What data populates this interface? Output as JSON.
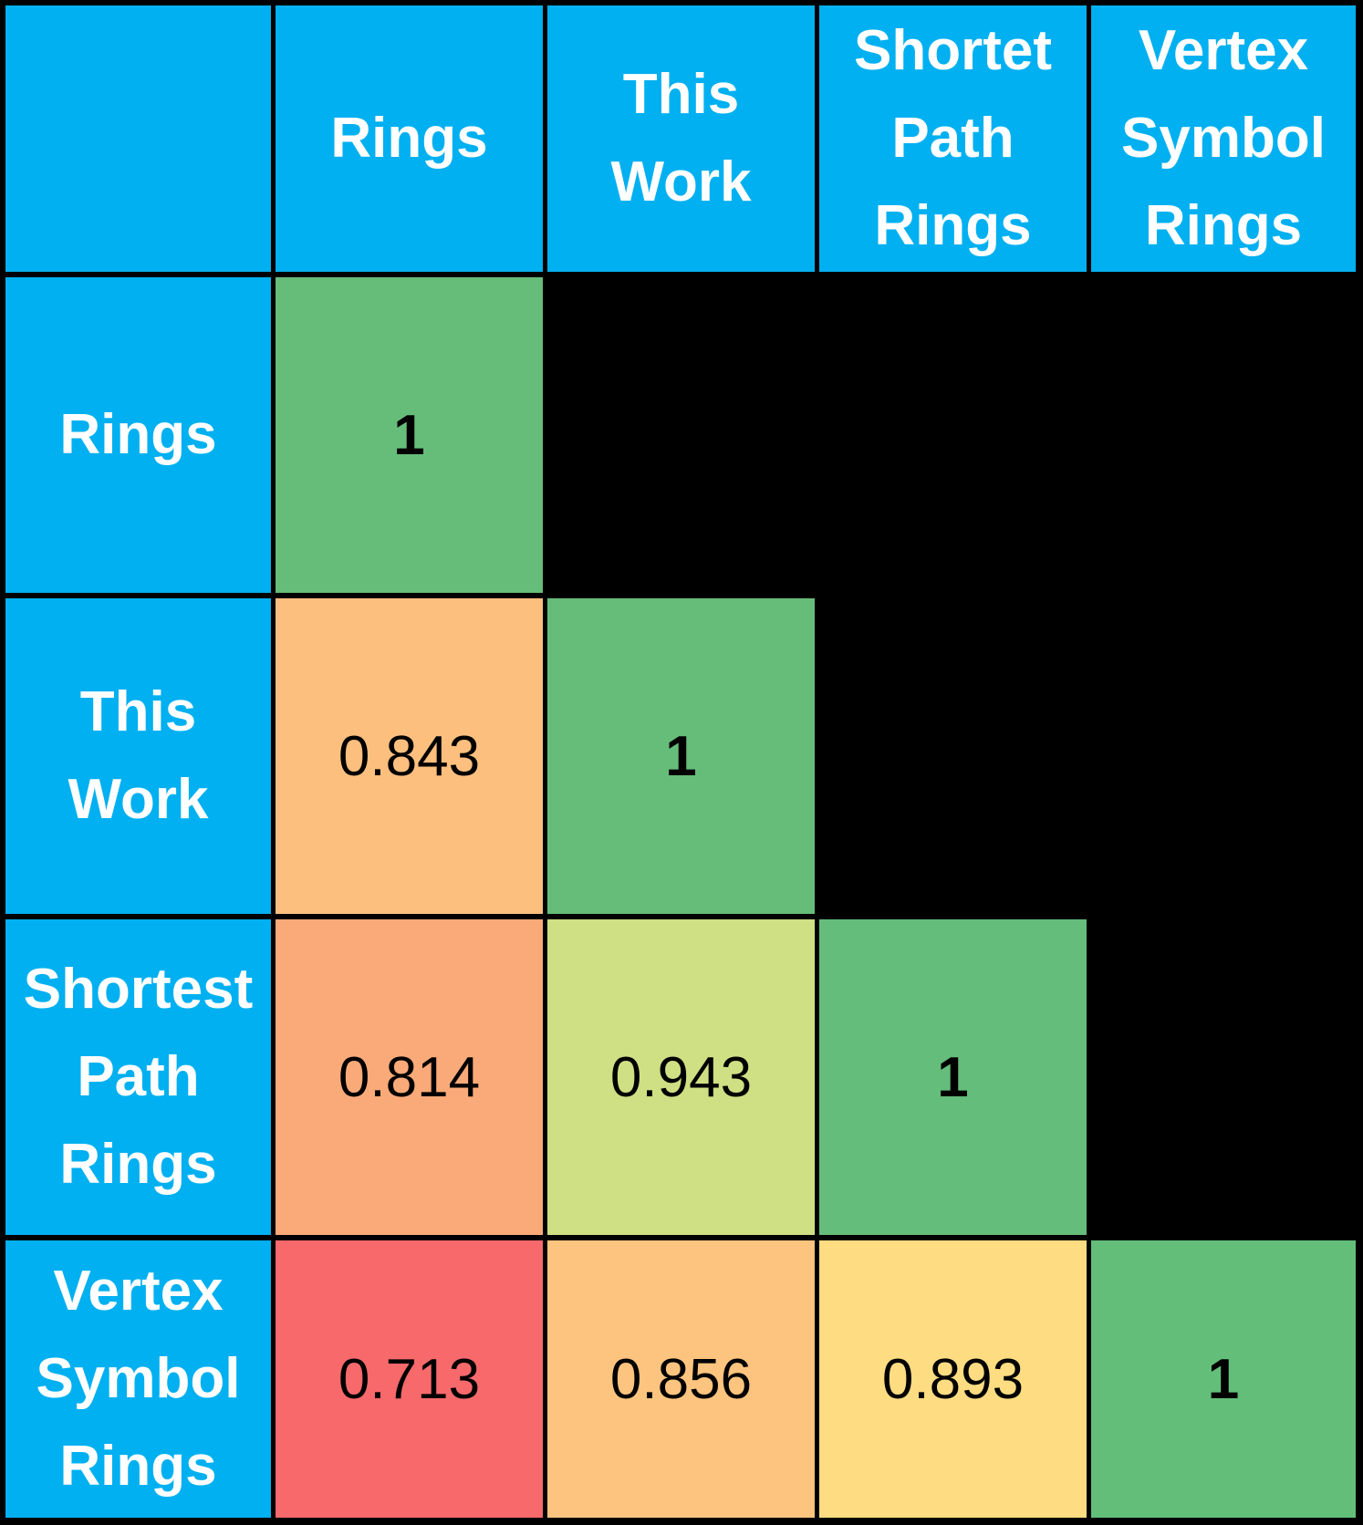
{
  "chart_data": {
    "type": "heatmap",
    "title": "",
    "corner_label": "",
    "col_headers": [
      [
        "Rings"
      ],
      [
        "This",
        "Work"
      ],
      [
        "Shortet",
        "Path",
        "Rings"
      ],
      [
        "Vertex",
        "Symbol",
        "Rings"
      ]
    ],
    "row_headers": [
      [
        "Rings"
      ],
      [
        "This",
        "Work"
      ],
      [
        "Shortest",
        "Path",
        "Rings"
      ],
      [
        "Vertex",
        "Symbol",
        "Rings"
      ]
    ],
    "values": [
      [
        "1",
        null,
        null,
        null
      ],
      [
        "0.843",
        "1",
        null,
        null
      ],
      [
        "0.814",
        "0.943",
        "1",
        null
      ],
      [
        "0.713",
        "0.856",
        "0.893",
        "1"
      ]
    ],
    "colors": [
      [
        "#66bd7a",
        null,
        null,
        null
      ],
      [
        "#fcbf7e",
        "#66bd7a",
        null,
        null
      ],
      [
        "#faaa79",
        "#cfdf83",
        "#64bd7a",
        null
      ],
      [
        "#f8696b",
        "#fcc47e",
        "#fedc81",
        "#63be7a"
      ]
    ],
    "header_color": "#00b0f0",
    "grid_color": "#000000"
  }
}
